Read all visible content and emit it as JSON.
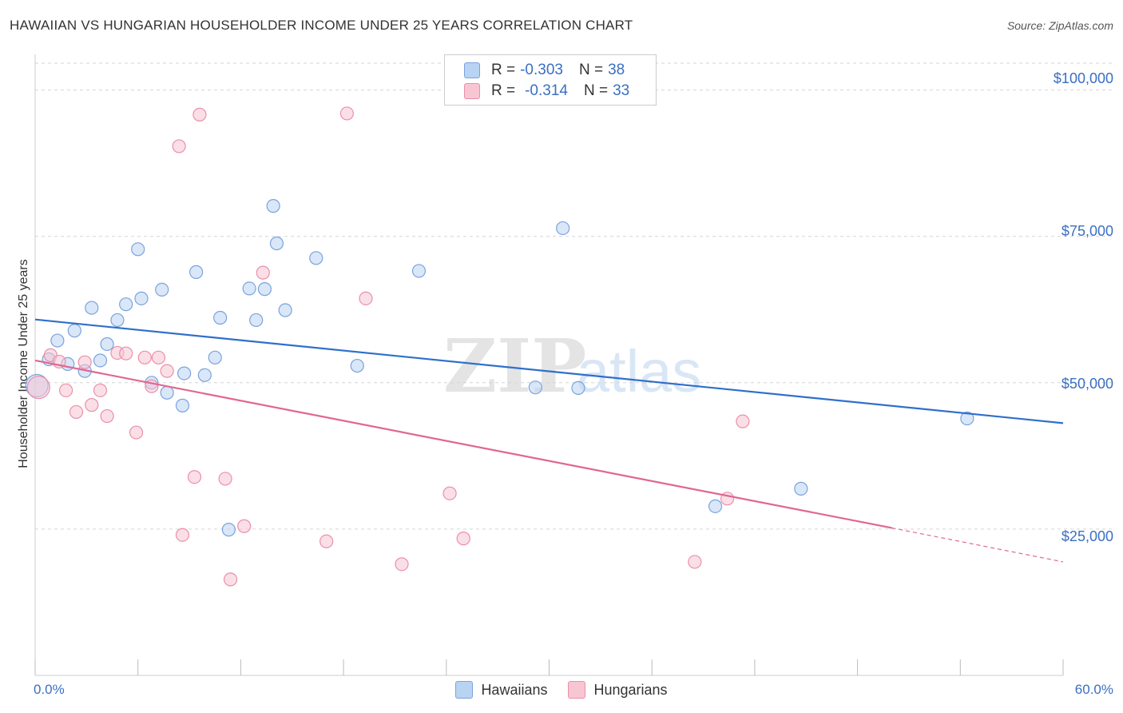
{
  "title": "HAWAIIAN VS HUNGARIAN HOUSEHOLDER INCOME UNDER 25 YEARS CORRELATION CHART",
  "source": "Source: ZipAtlas.com",
  "watermark": {
    "zip": "ZIP",
    "atlas": "atlas"
  },
  "legend": {
    "rows": [
      {
        "r_label": "R =",
        "r_value": "-0.303",
        "n_label": "N =",
        "n_value": "38"
      },
      {
        "r_label": "R =",
        "r_value": "-0.314",
        "n_label": "N =",
        "n_value": "33"
      }
    ]
  },
  "colors": {
    "hawaiians_fill": "#b9d3f3",
    "hawaiians_stroke": "#7aa3dd",
    "hawaiians_line": "#2f6fcb",
    "hungarians_fill": "#f8c5d3",
    "hungarians_stroke": "#ea8fab",
    "hungarians_line": "#e06690",
    "grid": "#d6d6d6",
    "axis_text": "#3a6fc2"
  },
  "chart_data": {
    "type": "scatter",
    "title": "HAWAIIAN VS HUNGARIAN HOUSEHOLDER INCOME UNDER 25 YEARS CORRELATION CHART",
    "xlabel": "",
    "ylabel": "Householder Income Under 25 years",
    "xlim": [
      0,
      60
    ],
    "ylim": [
      0,
      105000
    ],
    "x_tick_labels": [
      "0.0%",
      "60.0%"
    ],
    "y_ticks": [
      {
        "value": 25000,
        "label": "$25,000"
      },
      {
        "value": 50000,
        "label": "$50,000"
      },
      {
        "value": 75000,
        "label": "$75,000"
      },
      {
        "value": 100000,
        "label": "$100,000"
      }
    ],
    "grid": true,
    "legend_position": "top-center",
    "series": [
      {
        "name": "Hawaiians",
        "trend": {
          "x0": 0,
          "y0": 60800,
          "x1": 60,
          "y1": 43100
        },
        "points": [
          [
            0.1,
            49500
          ],
          [
            0.8,
            54000
          ],
          [
            1.3,
            57200
          ],
          [
            1.9,
            53200
          ],
          [
            2.3,
            58900
          ],
          [
            2.9,
            52000
          ],
          [
            3.3,
            62800
          ],
          [
            3.8,
            53800
          ],
          [
            4.2,
            56600
          ],
          [
            4.8,
            60700
          ],
          [
            5.3,
            63400
          ],
          [
            6.0,
            72800
          ],
          [
            6.2,
            64400
          ],
          [
            6.8,
            50000
          ],
          [
            7.4,
            65900
          ],
          [
            7.7,
            48300
          ],
          [
            8.6,
            46100
          ],
          [
            8.7,
            51600
          ],
          [
            9.4,
            68900
          ],
          [
            9.9,
            51300
          ],
          [
            10.5,
            54300
          ],
          [
            10.8,
            61100
          ],
          [
            11.3,
            24900
          ],
          [
            12.5,
            66100
          ],
          [
            12.9,
            60700
          ],
          [
            13.4,
            66000
          ],
          [
            13.9,
            80200
          ],
          [
            14.1,
            73800
          ],
          [
            14.6,
            62400
          ],
          [
            16.4,
            71300
          ],
          [
            18.8,
            52900
          ],
          [
            22.4,
            69100
          ],
          [
            29.2,
            49200
          ],
          [
            30.8,
            76400
          ],
          [
            31.7,
            49100
          ],
          [
            39.7,
            28900
          ],
          [
            44.7,
            31900
          ],
          [
            54.4,
            43900
          ]
        ]
      },
      {
        "name": "Hungarians",
        "trend": {
          "x0": 0,
          "y0": 53800,
          "x1": 50,
          "y1": 25200,
          "dash_to_x": 60,
          "dash_to_y": 19400
        },
        "points": [
          [
            0.2,
            49200
          ],
          [
            0.9,
            54700
          ],
          [
            1.4,
            53600
          ],
          [
            1.8,
            48700
          ],
          [
            2.4,
            45000
          ],
          [
            2.9,
            53500
          ],
          [
            3.3,
            46200
          ],
          [
            3.8,
            48700
          ],
          [
            4.2,
            44300
          ],
          [
            4.8,
            55100
          ],
          [
            5.3,
            55000
          ],
          [
            5.9,
            41500
          ],
          [
            6.4,
            54300
          ],
          [
            6.8,
            49400
          ],
          [
            7.2,
            54300
          ],
          [
            7.7,
            52000
          ],
          [
            8.4,
            90400
          ],
          [
            8.6,
            24000
          ],
          [
            9.3,
            33900
          ],
          [
            9.6,
            95800
          ],
          [
            11.1,
            33600
          ],
          [
            11.4,
            16400
          ],
          [
            12.2,
            25500
          ],
          [
            13.3,
            68800
          ],
          [
            17.0,
            22900
          ],
          [
            18.2,
            96000
          ],
          [
            19.3,
            64400
          ],
          [
            21.4,
            19000
          ],
          [
            24.2,
            31100
          ],
          [
            25.0,
            23400
          ],
          [
            38.5,
            19400
          ],
          [
            40.4,
            30200
          ],
          [
            41.3,
            43400
          ]
        ]
      }
    ]
  }
}
